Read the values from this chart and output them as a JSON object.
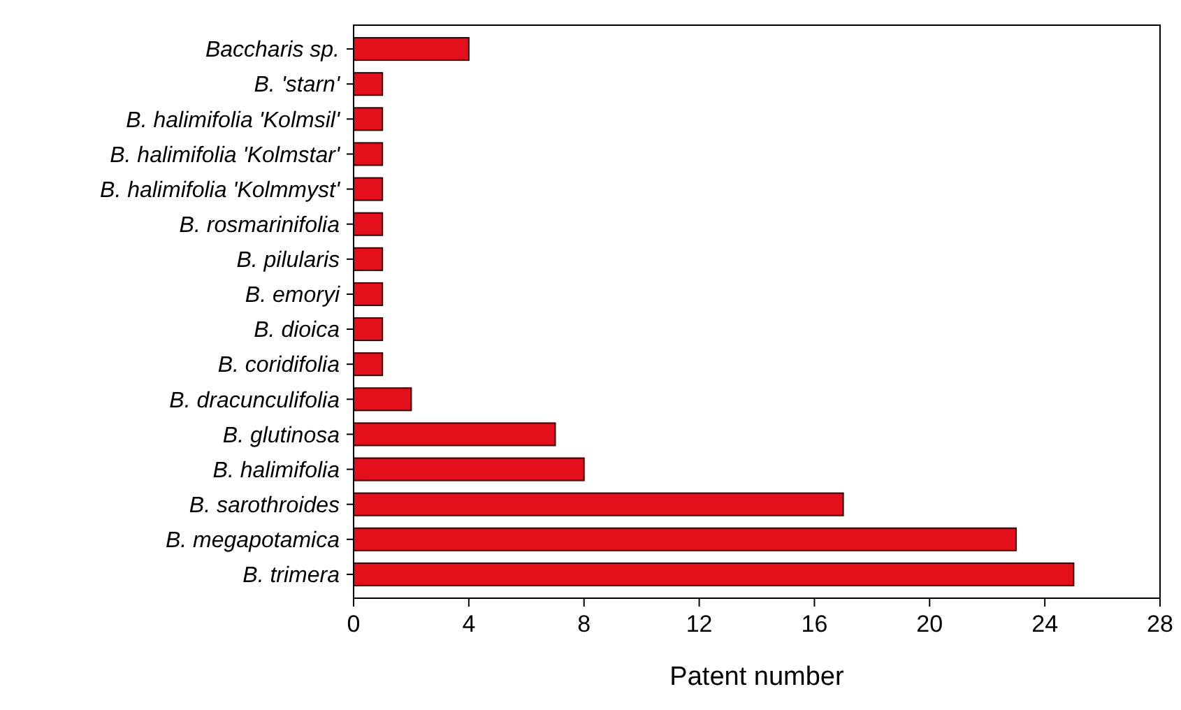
{
  "chart_data": {
    "type": "bar",
    "orientation": "horizontal",
    "xlabel": "Patent number",
    "categories": [
      "Baccharis sp.",
      "B. 'starn'",
      "B. halimifolia 'Kolmsil'",
      "B. halimifolia 'Kolmstar'",
      "B. halimifolia 'Kolmmyst'",
      "B. rosmarinifolia",
      "B. pilularis",
      "B. emoryi",
      "B. dioica",
      "B. coridifolia",
      "B. dracunculifolia",
      "B. glutinosa",
      "B. halimifolia",
      "B. sarothroides",
      "B. megapotamica",
      "B. trimera"
    ],
    "values": [
      4,
      1,
      1,
      1,
      1,
      1,
      1,
      1,
      1,
      1,
      2,
      7,
      8,
      17,
      23,
      25
    ],
    "color": "#e3101b",
    "xlim": [
      0,
      28
    ],
    "xticks": [
      0,
      4,
      8,
      12,
      16,
      20,
      24,
      28
    ]
  }
}
